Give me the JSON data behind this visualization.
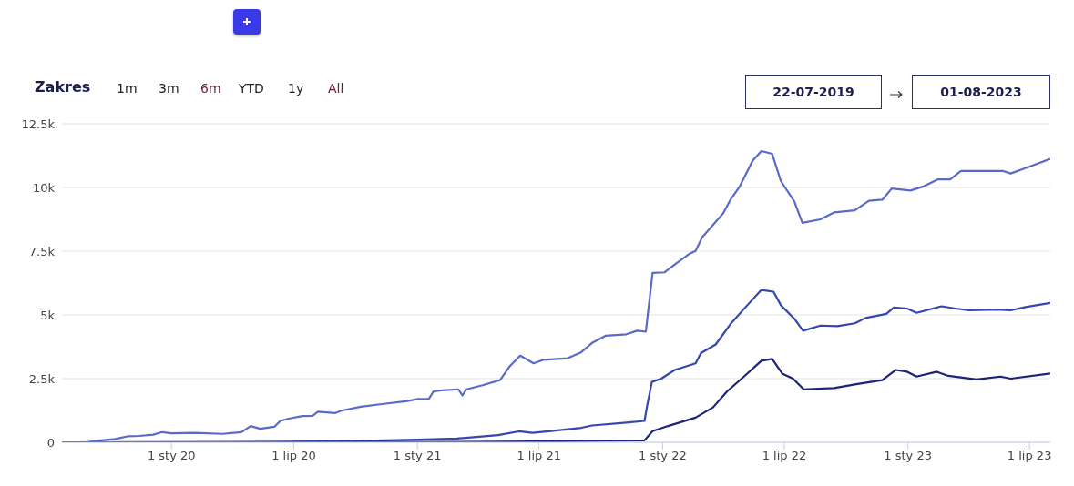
{
  "chart_data": {
    "type": "line",
    "annotations": [
      "Zakres",
      "1m",
      "3m",
      "6m",
      "YTD",
      "1y",
      "All",
      "22-07-2019",
      "01-08-2023"
    ],
    "xlim": [
      "2019-07-22",
      "2023-08-01"
    ],
    "xticks": [
      {
        "value": "2020-01-01",
        "label": "1 sty 20"
      },
      {
        "value": "2020-07-01",
        "label": "1 lip 20"
      },
      {
        "value": "2021-01-01",
        "label": "1 sty 21"
      },
      {
        "value": "2021-07-01",
        "label": "1 lip 21"
      },
      {
        "value": "2022-01-01",
        "label": "1 sty 22"
      },
      {
        "value": "2022-07-01",
        "label": "1 lip 22"
      },
      {
        "value": "2023-01-01",
        "label": "1 sty 23"
      },
      {
        "value": "2023-07-01",
        "label": "1 lip 23"
      }
    ],
    "ylim": [
      0,
      12500
    ],
    "yticks": [
      0,
      {
        "value": 2500,
        "label": "2.5k"
      },
      {
        "value": 5000,
        "label": "5k"
      },
      {
        "value": 7500,
        "label": "7.5k"
      },
      {
        "value": 10000,
        "label": "10k"
      },
      {
        "value": 12500,
        "label": "12.5k"
      }
    ],
    "grid": "y",
    "marker": "none",
    "line_style": "solid",
    "series": [
      {
        "color": "#5a6ac8",
        "x": [
          "2019-07-22",
          "2019-08-29",
          "2019-09-09",
          "2019-10-09",
          "2019-10-29",
          "2019-11-14",
          "2019-12-05",
          "2019-12-18",
          "2020-01-01",
          "2020-02-05",
          "2020-03-17",
          "2020-04-14",
          "2020-04-28",
          "2020-05-12",
          "2020-06-02",
          "2020-06-11",
          "2020-06-23",
          "2020-07-14",
          "2020-07-29",
          "2020-08-06",
          "2020-09-01",
          "2020-09-11",
          "2020-10-09",
          "2020-11-09",
          "2020-12-15",
          "2021-01-02",
          "2021-01-18",
          "2021-01-25",
          "2021-02-07",
          "2021-03-03",
          "2021-03-09",
          "2021-03-15",
          "2021-04-08",
          "2021-05-04",
          "2021-05-18",
          "2021-06-03",
          "2021-06-23",
          "2021-07-08",
          "2021-08-13",
          "2021-09-02",
          "2021-09-18",
          "2021-10-08",
          "2021-11-08",
          "2021-11-24",
          "2021-12-07",
          "2021-12-17",
          "2022-01-04",
          "2022-01-19",
          "2022-02-09",
          "2022-02-19",
          "2022-03-01",
          "2022-04-01",
          "2022-04-12",
          "2022-04-26",
          "2022-05-15",
          "2022-05-28",
          "2022-06-13",
          "2022-06-26",
          "2022-07-16",
          "2022-07-28",
          "2022-08-24",
          "2022-09-13",
          "2022-10-14",
          "2022-11-04",
          "2022-11-24",
          "2022-12-08",
          "2023-01-05",
          "2023-01-25",
          "2023-02-15",
          "2023-03-05",
          "2023-03-21",
          "2023-04-24",
          "2023-05-22",
          "2023-06-03",
          "2023-06-25",
          "2023-08-01"
        ],
        "values": [
          0,
          0,
          50,
          130,
          240,
          250,
          300,
          400,
          350,
          370,
          330,
          400,
          640,
          530,
          610,
          840,
          930,
          1030,
          1040,
          1200,
          1150,
          1250,
          1400,
          1500,
          1610,
          1700,
          1700,
          2000,
          2040,
          2080,
          1840,
          2080,
          2240,
          2440,
          2970,
          3400,
          3100,
          3240,
          3300,
          3540,
          3900,
          4180,
          4240,
          4380,
          4340,
          6650,
          6670,
          6980,
          7380,
          7510,
          8050,
          8980,
          9520,
          10050,
          11050,
          11430,
          11320,
          10250,
          9450,
          8610,
          8750,
          9020,
          9100,
          9480,
          9520,
          9960,
          9880,
          10050,
          10320,
          10320,
          10650,
          10650,
          10650,
          10550,
          10760,
          11120
        ]
      },
      {
        "color": "#3546b0",
        "x": [
          "2019-07-22",
          "2020-06-01",
          "2020-10-01",
          "2021-01-01",
          "2021-03-01",
          "2021-05-01",
          "2021-06-01",
          "2021-06-21",
          "2021-07-19",
          "2021-09-02",
          "2021-09-18",
          "2021-11-08",
          "2021-12-05",
          "2021-12-09",
          "2021-12-16",
          "2021-12-30",
          "2022-01-19",
          "2022-02-19",
          "2022-02-27",
          "2022-03-21",
          "2022-04-12",
          "2022-05-07",
          "2022-05-28",
          "2022-06-15",
          "2022-06-26",
          "2022-07-16",
          "2022-07-29",
          "2022-08-24",
          "2022-09-18",
          "2022-10-14",
          "2022-10-30",
          "2022-11-30",
          "2022-12-11",
          "2022-12-31",
          "2023-01-14",
          "2023-02-20",
          "2023-03-13",
          "2023-04-02",
          "2023-05-14",
          "2023-06-03",
          "2023-06-25",
          "2023-08-01"
        ],
        "values": [
          0,
          10,
          50,
          100,
          150,
          280,
          430,
          370,
          440,
          570,
          660,
          770,
          840,
          1440,
          2370,
          2500,
          2840,
          3100,
          3500,
          3840,
          4640,
          5380,
          5980,
          5910,
          5380,
          4850,
          4380,
          4580,
          4560,
          4670,
          4880,
          5040,
          5290,
          5250,
          5080,
          5340,
          5250,
          5180,
          5210,
          5180,
          5310,
          5470
        ]
      },
      {
        "color": "#1c237a",
        "x": [
          "2019-07-22",
          "2021-01-01",
          "2021-06-21",
          "2021-12-05",
          "2021-12-17",
          "2022-01-09",
          "2022-02-19",
          "2022-03-17",
          "2022-04-07",
          "2022-05-02",
          "2022-05-28",
          "2022-06-13",
          "2022-06-28",
          "2022-07-14",
          "2022-07-30",
          "2022-09-13",
          "2022-10-14",
          "2022-11-24",
          "2022-12-14",
          "2022-12-31",
          "2023-01-14",
          "2023-02-13",
          "2023-03-02",
          "2023-04-13",
          "2023-05-19",
          "2023-06-03",
          "2023-08-01"
        ],
        "values": [
          0,
          10,
          30,
          75,
          440,
          640,
          970,
          1370,
          2000,
          2580,
          3200,
          3270,
          2700,
          2500,
          2080,
          2130,
          2270,
          2440,
          2840,
          2770,
          2580,
          2770,
          2610,
          2470,
          2580,
          2500,
          2700
        ]
      }
    ]
  }
}
